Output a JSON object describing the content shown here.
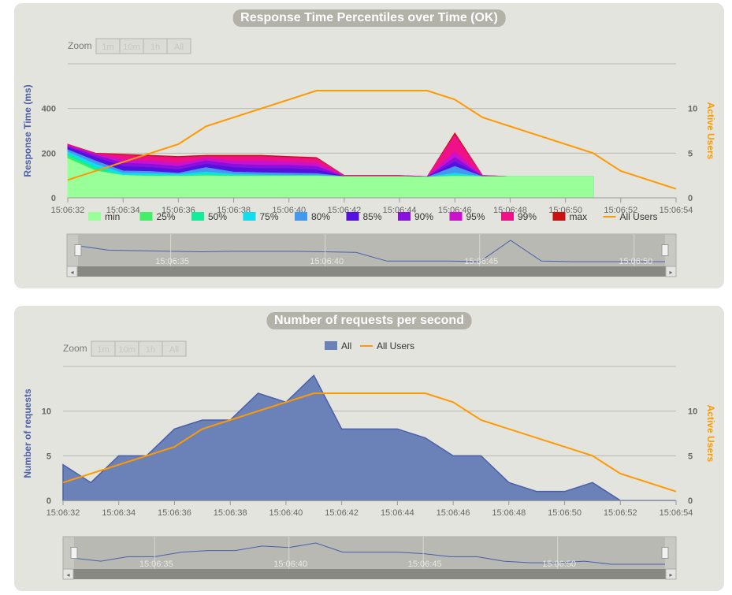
{
  "colors": {
    "primary_axis": "#4a5fa8",
    "secondary_axis": "#ff9900",
    "panel_bg": "#e4e4de"
  },
  "zoom_label": "Zoom",
  "zoom_buttons": [
    "1m",
    "10m",
    "1h",
    "All"
  ],
  "charts": [
    {
      "title": "Response Time Percentiles over Time (OK)",
      "ylabel": "Response Time (ms)",
      "y2label": "Active Users",
      "yticks": [
        "0",
        "200",
        "400"
      ],
      "y2ticks": [
        "0",
        "5",
        "10"
      ],
      "xticks": [
        "15:06:32",
        "15:06:34",
        "15:06:36",
        "15:06:38",
        "15:06:40",
        "15:06:42",
        "15:06:44",
        "15:06:46",
        "15:06:48",
        "15:06:50",
        "15:06:52",
        "15:06:54"
      ],
      "legend": [
        "min",
        "25%",
        "50%",
        "75%",
        "80%",
        "85%",
        "90%",
        "95%",
        "99%",
        "max",
        "All Users"
      ],
      "navigator_ticks": [
        "15:06:35",
        "15:06:40",
        "15:06:45",
        "15:06:50"
      ]
    },
    {
      "title": "Number of requests per second",
      "ylabel": "Number of requests",
      "y2label": "Active Users",
      "yticks": [
        "0",
        "5",
        "10"
      ],
      "y2ticks": [
        "0",
        "5",
        "10"
      ],
      "xticks": [
        "15:06:32",
        "15:06:34",
        "15:06:36",
        "15:06:38",
        "15:06:40",
        "15:06:42",
        "15:06:44",
        "15:06:46",
        "15:06:48",
        "15:06:50",
        "15:06:52",
        "15:06:54"
      ],
      "legend": [
        "All",
        "All Users"
      ],
      "navigator_ticks": [
        "15:06:35",
        "15:06:40",
        "15:06:45",
        "15:06:50"
      ]
    }
  ],
  "chart_data": [
    {
      "type": "area",
      "title": "Response Time Percentiles over Time (OK)",
      "xlabel": "",
      "ylabel": "Response Time (ms)",
      "y2label": "Active Users",
      "ylim": [
        0,
        600
      ],
      "y2lim": [
        0,
        15
      ],
      "x": [
        "15:06:32",
        "15:06:33",
        "15:06:34",
        "15:06:35",
        "15:06:36",
        "15:06:37",
        "15:06:38",
        "15:06:39",
        "15:06:40",
        "15:06:41",
        "15:06:42",
        "15:06:43",
        "15:06:44",
        "15:06:45",
        "15:06:46",
        "15:06:47",
        "15:06:48",
        "15:06:49",
        "15:06:50",
        "15:06:51"
      ],
      "series": [
        {
          "name": "max",
          "color": "#cc1111",
          "values": [
            240,
            200,
            195,
            190,
            185,
            190,
            190,
            190,
            185,
            180,
            100,
            100,
            100,
            95,
            290,
            100,
            95,
            95,
            95,
            95
          ]
        },
        {
          "name": "99%",
          "color": "#ee1188",
          "values": [
            238,
            198,
            190,
            185,
            180,
            185,
            185,
            185,
            180,
            175,
            100,
            100,
            100,
            95,
            280,
            100,
            95,
            95,
            95,
            95
          ]
        },
        {
          "name": "95%",
          "color": "#cc11cc",
          "values": [
            235,
            195,
            170,
            165,
            155,
            175,
            165,
            165,
            160,
            155,
            95,
            95,
            95,
            95,
            205,
            98,
            95,
            95,
            95,
            95
          ]
        },
        {
          "name": "90%",
          "color": "#8811dd",
          "values": [
            230,
            190,
            155,
            150,
            140,
            165,
            150,
            145,
            145,
            140,
            95,
            95,
            95,
            92,
            180,
            96,
            95,
            95,
            95,
            95
          ]
        },
        {
          "name": "85%",
          "color": "#5511dd",
          "values": [
            225,
            180,
            140,
            135,
            125,
            150,
            135,
            130,
            130,
            125,
            95,
            95,
            95,
            92,
            160,
            95,
            95,
            95,
            95,
            95
          ]
        },
        {
          "name": "80%",
          "color": "#4499ee",
          "values": [
            215,
            165,
            120,
            118,
            110,
            135,
            115,
            112,
            110,
            108,
            95,
            95,
            95,
            92,
            140,
            95,
            95,
            95,
            95,
            95
          ]
        },
        {
          "name": "75%",
          "color": "#11ddee",
          "values": [
            205,
            150,
            110,
            108,
            105,
            115,
            105,
            102,
            100,
            100,
            95,
            95,
            95,
            92,
            110,
            95,
            95,
            95,
            95,
            95
          ]
        },
        {
          "name": "50%",
          "color": "#11ee99",
          "values": [
            195,
            135,
            100,
            100,
            98,
            105,
            100,
            100,
            98,
            98,
            95,
            95,
            95,
            92,
            100,
            95,
            95,
            95,
            95,
            95
          ]
        },
        {
          "name": "25%",
          "color": "#44ee66",
          "values": [
            185,
            125,
            100,
            98,
            98,
            100,
            98,
            98,
            98,
            98,
            95,
            95,
            95,
            92,
            98,
            95,
            95,
            95,
            95,
            95
          ]
        },
        {
          "name": "min",
          "color": "#99ff99",
          "values": [
            175,
            120,
            100,
            96,
            96,
            98,
            96,
            96,
            96,
            96,
            94,
            94,
            94,
            92,
            96,
            94,
            94,
            94,
            94,
            94
          ]
        }
      ],
      "secondary_series": {
        "name": "All Users",
        "color": "#ff9900",
        "x": [
          "15:06:32",
          "15:06:36",
          "15:06:37",
          "15:06:41",
          "15:06:45",
          "15:06:46",
          "15:06:47",
          "15:06:51",
          "15:06:52",
          "15:06:54"
        ],
        "values": [
          2,
          6,
          8,
          12,
          12,
          11,
          9,
          5,
          3,
          1
        ]
      }
    },
    {
      "type": "area",
      "title": "Number of requests per second",
      "xlabel": "",
      "ylabel": "Number of requests",
      "y2label": "Active Users",
      "ylim": [
        0,
        15
      ],
      "y2lim": [
        0,
        15
      ],
      "series": [
        {
          "name": "All",
          "color": "#6b82b8",
          "x": [
            "15:06:32",
            "15:06:33",
            "15:06:34",
            "15:06:35",
            "15:06:36",
            "15:06:37",
            "15:06:38",
            "15:06:39",
            "15:06:40",
            "15:06:41",
            "15:06:42",
            "15:06:43",
            "15:06:44",
            "15:06:45",
            "15:06:46",
            "15:06:47",
            "15:06:48",
            "15:06:49",
            "15:06:50",
            "15:06:51",
            "15:06:52",
            "15:06:53",
            "15:06:54"
          ],
          "values": [
            4,
            2,
            5,
            5,
            8,
            9,
            9,
            12,
            11,
            14,
            8,
            8,
            8,
            7,
            5,
            5,
            2,
            1,
            1,
            2,
            0,
            0,
            0
          ]
        }
      ],
      "secondary_series": {
        "name": "All Users",
        "color": "#ff9900",
        "x": [
          "15:06:32",
          "15:06:36",
          "15:06:37",
          "15:06:41",
          "15:06:45",
          "15:06:46",
          "15:06:47",
          "15:06:51",
          "15:06:52",
          "15:06:54"
        ],
        "values": [
          2,
          6,
          8,
          12,
          12,
          11,
          9,
          5,
          3,
          1
        ]
      }
    }
  ]
}
